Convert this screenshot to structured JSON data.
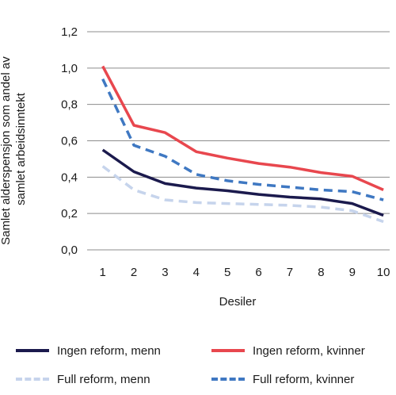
{
  "chart_data": {
    "type": "line",
    "xlabel": "Desiler",
    "ylabel": [
      "Samlet alderspensjon som andel av",
      "samlet arbeidsinntekt"
    ],
    "x": [
      1,
      2,
      3,
      4,
      5,
      6,
      7,
      8,
      9,
      10
    ],
    "x_tick_labels": [
      "1",
      "2",
      "3",
      "4",
      "5",
      "6",
      "7",
      "8",
      "9",
      "10"
    ],
    "ylim": [
      0,
      1.2
    ],
    "y_ticks": [
      0,
      0.2,
      0.4,
      0.6,
      0.8,
      1.0,
      1.2
    ],
    "y_tick_labels": [
      "0,0",
      "0,2",
      "0,4",
      "0,6",
      "0,8",
      "1,0",
      "1,2"
    ],
    "grid": "horizontal",
    "legend_position": "bottom",
    "series": [
      {
        "name": "Ingen reform, menn",
        "color": "#1b1a4d",
        "dashed": false,
        "values": [
          0.55,
          0.43,
          0.365,
          0.34,
          0.325,
          0.305,
          0.29,
          0.28,
          0.255,
          0.19
        ]
      },
      {
        "name": "Ingen reform, kvinner",
        "color": "#e8474e",
        "dashed": false,
        "values": [
          1.01,
          0.685,
          0.645,
          0.54,
          0.505,
          0.475,
          0.455,
          0.425,
          0.405,
          0.33
        ]
      },
      {
        "name": "Full reform, menn",
        "color": "#c6d4ec",
        "dashed": true,
        "values": [
          0.46,
          0.33,
          0.275,
          0.26,
          0.255,
          0.25,
          0.245,
          0.235,
          0.215,
          0.155
        ]
      },
      {
        "name": "Full reform, kvinner",
        "color": "#3f78c2",
        "dashed": true,
        "values": [
          0.94,
          0.575,
          0.515,
          0.415,
          0.38,
          0.36,
          0.345,
          0.33,
          0.32,
          0.275
        ]
      }
    ]
  }
}
